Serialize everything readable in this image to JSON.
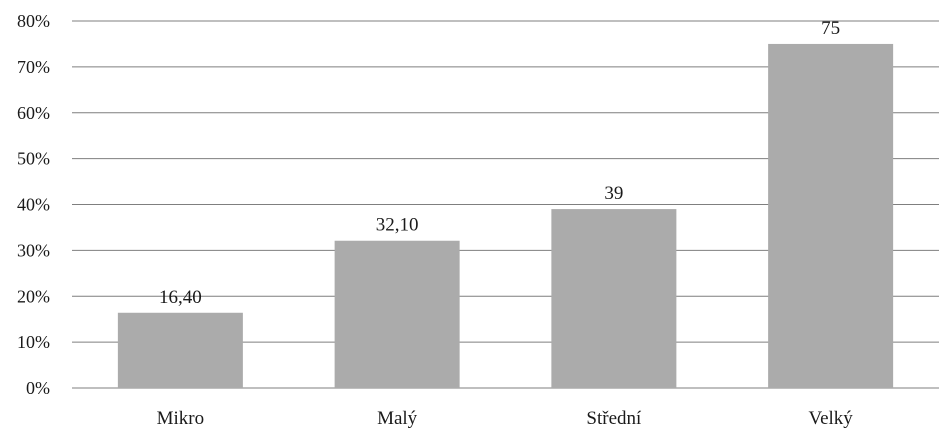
{
  "chart_data": {
    "type": "bar",
    "categories": [
      "Mikro",
      "Malý",
      "Střední",
      "Velký"
    ],
    "values": [
      16.4,
      32.1,
      39,
      75
    ],
    "data_labels": [
      "16,40",
      "32,10",
      "39",
      "75"
    ],
    "ylim": [
      0,
      80
    ],
    "y_ticks": [
      0,
      10,
      20,
      30,
      40,
      50,
      60,
      70,
      80
    ],
    "y_tick_labels": [
      "0%",
      "10%",
      "20%",
      "30%",
      "40%",
      "50%",
      "60%",
      "70%",
      "80%"
    ],
    "grid": true,
    "legend": "none",
    "bar_color": "#ababab",
    "grid_color": "#7f7f7f"
  }
}
